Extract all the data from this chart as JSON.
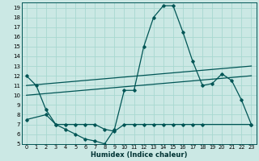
{
  "xlabel": "Humidex (Indice chaleur)",
  "bg_color": "#cbe8e4",
  "line_color": "#005555",
  "grid_color": "#a8d8d0",
  "xlim": [
    -0.5,
    23.5
  ],
  "ylim": [
    5,
    19.5
  ],
  "xticks": [
    0,
    1,
    2,
    3,
    4,
    5,
    6,
    7,
    8,
    9,
    10,
    11,
    12,
    13,
    14,
    15,
    16,
    17,
    18,
    19,
    20,
    21,
    22,
    23
  ],
  "yticks": [
    5,
    6,
    7,
    8,
    9,
    10,
    11,
    12,
    13,
    14,
    15,
    16,
    17,
    18,
    19
  ],
  "line_main": {
    "x": [
      0,
      1,
      2,
      3,
      4,
      5,
      6,
      7,
      8,
      9,
      10,
      11,
      12,
      13,
      14,
      15,
      16,
      17,
      18,
      19,
      20,
      21,
      22,
      23
    ],
    "y": [
      12.0,
      11.0,
      8.5,
      7.0,
      6.5,
      6.0,
      5.5,
      5.3,
      5.0,
      6.5,
      10.5,
      10.5,
      15.0,
      18.0,
      19.2,
      19.2,
      16.5,
      13.5,
      11.0,
      11.2,
      12.2,
      11.5,
      9.5,
      7.0
    ]
  },
  "line_flat": {
    "x": [
      0,
      2,
      3,
      4,
      5,
      6,
      7,
      8,
      9,
      10,
      11,
      12,
      13,
      14,
      15,
      16,
      17,
      18,
      23
    ],
    "y": [
      7.5,
      8.0,
      7.0,
      7.0,
      7.0,
      7.0,
      7.0,
      6.5,
      6.3,
      7.0,
      7.0,
      7.0,
      7.0,
      7.0,
      7.0,
      7.0,
      7.0,
      7.0,
      7.0
    ]
  },
  "trend1_x": [
    0,
    23
  ],
  "trend1_y": [
    11.0,
    13.0
  ],
  "trend2_x": [
    0,
    23
  ],
  "trend2_y": [
    10.0,
    12.0
  ]
}
